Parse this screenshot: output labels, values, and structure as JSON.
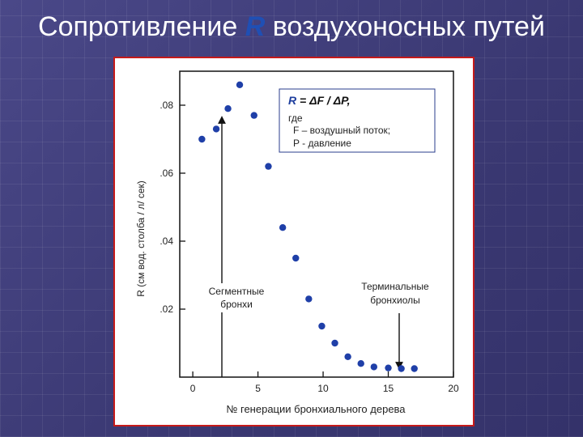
{
  "slide": {
    "title_prefix": "Сопротивление ",
    "title_var": "R",
    "title_suffix": " воздухоносных путей"
  },
  "chart_data": {
    "type": "scatter",
    "xlabel": "№ генерации бронхиального дерева",
    "ylabel": "R (см вод. столба / л/ сек)",
    "xlim": [
      -1,
      20
    ],
    "ylim": [
      0,
      0.09
    ],
    "x_ticks": [
      0,
      5,
      10,
      15,
      20
    ],
    "x_tick_labels": [
      "0",
      "5",
      "10",
      "15",
      "20"
    ],
    "y_ticks": [
      0.02,
      0.04,
      0.06,
      0.08
    ],
    "y_tick_labels": [
      ".02",
      ".04",
      ".06",
      ".08"
    ],
    "grid": false,
    "x": [
      0.7,
      1.8,
      2.7,
      3.6,
      4.7,
      5.8,
      6.9,
      7.9,
      8.9,
      9.9,
      10.9,
      11.9,
      12.9,
      13.9,
      15.0,
      16.0,
      17.0
    ],
    "y": [
      0.07,
      0.073,
      0.079,
      0.086,
      0.077,
      0.062,
      0.044,
      0.035,
      0.023,
      0.015,
      0.01,
      0.006,
      0.004,
      0.003,
      0.0027,
      0.0025,
      0.0025
    ],
    "formula": {
      "line1_var": "R",
      "line1_rest": " = ΔF / ΔP,",
      "line2": "где",
      "line3": "F – воздушный поток;",
      "line4": "P - давление"
    },
    "annotations": [
      {
        "text_lines": [
          "Сегментные",
          "бронхи"
        ],
        "target_x": 2.7
      },
      {
        "text_lines": [
          "Терминальные",
          "бронхиолы"
        ],
        "target_x": 16.0
      }
    ]
  }
}
